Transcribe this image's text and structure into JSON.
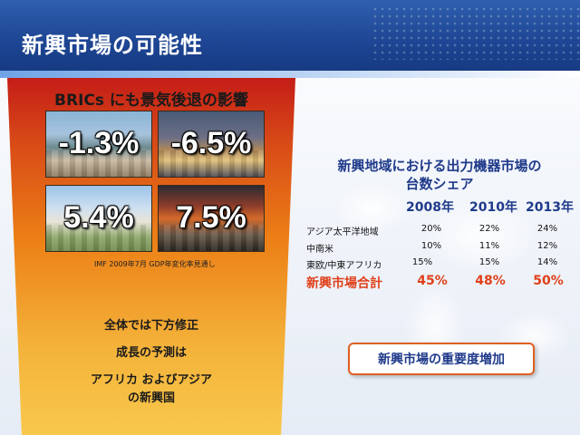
{
  "slide": {
    "title": "新興市場の可能性"
  },
  "left_panel": {
    "heading": "BRICs にも景気後退の影響",
    "tiles": [
      {
        "value": "-1.3%",
        "image": "rio-de-janeiro-photo"
      },
      {
        "value": "-6.5%",
        "image": "moscow-kremlin-photo"
      },
      {
        "value": "5.4%",
        "image": "india-palace-photo"
      },
      {
        "value": "7.5%",
        "image": "china-street-photo"
      }
    ],
    "source_note": "IMF  2009年7月  GDP年変化率見通し",
    "summary": [
      "全体では下方修正",
      "成長の予測は",
      "アフリカ  およびアジア",
      "の新興国"
    ]
  },
  "market_table": {
    "title_line1": "新興地域における出力機器市場の",
    "title_line2": "台数シェア",
    "years": [
      "2008年",
      "2010年",
      "2013年"
    ],
    "rows": [
      {
        "label": "アジア太平洋地域",
        "values": [
          "20%",
          "22%",
          "24%"
        ]
      },
      {
        "label": "中南米",
        "values": [
          "10%",
          "11%",
          "12%"
        ]
      },
      {
        "label": "東欧/中東アフリカ",
        "values": [
          "15%",
          "15%",
          "14%"
        ]
      }
    ],
    "total": {
      "label": "新興市場合計",
      "values": [
        "45%",
        "48%",
        "50%"
      ]
    }
  },
  "callout": {
    "text": "新興市場の重要度増加"
  },
  "colors": {
    "header_blue": "#1d4593",
    "title_blue": "#1f3a8a",
    "accent_red": "#e0401a",
    "callout_border": "#e06020"
  }
}
